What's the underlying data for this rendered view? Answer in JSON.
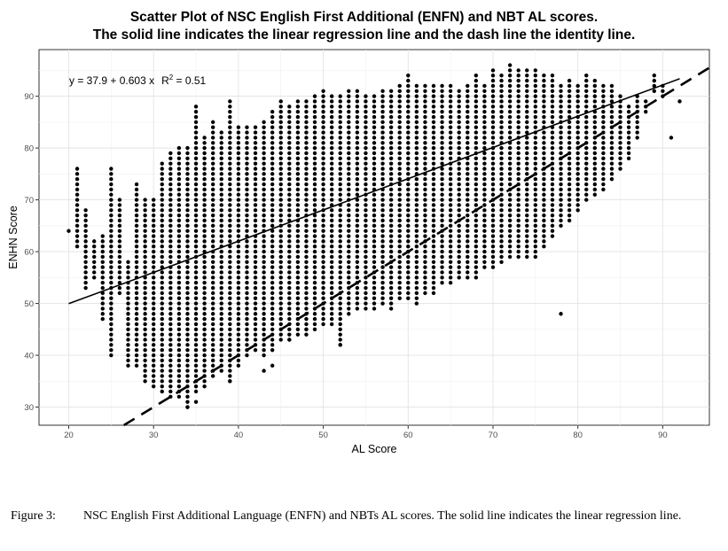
{
  "chart_data": {
    "type": "scatter",
    "title": "Scatter Plot of NSC English First Additional (ENFN) and NBT AL scores.",
    "subtitle": "The solid line indicates the linear regression line and the dash line the identity line.",
    "xlabel": "AL Score",
    "ylabel": "ENHN Score",
    "xlim": [
      16.5,
      95.5
    ],
    "ylim": [
      26.5,
      99
    ],
    "xticks": [
      20,
      30,
      40,
      50,
      60,
      70,
      80,
      90
    ],
    "yticks": [
      30,
      40,
      50,
      60,
      70,
      80,
      90
    ],
    "grid": true,
    "annotation": {
      "prefix": "y = 37.9 + 0.603 x",
      "r2_label": "R",
      "r2_sup": "2",
      "r2_value": " = 0.51"
    },
    "regression": {
      "intercept": 37.9,
      "slope": 0.603,
      "style": "solid"
    },
    "identity": {
      "intercept": 0,
      "slope": 1,
      "style": "dashed"
    },
    "point_grid": {
      "x_step": 1,
      "y_step": 1,
      "x_range": [
        20,
        92
      ]
    },
    "columns": [
      [
        20,
        64,
        64
      ],
      [
        21,
        61,
        76
      ],
      [
        22,
        53,
        68
      ],
      [
        23,
        55,
        62
      ],
      [
        24,
        47,
        63
      ],
      [
        25,
        40,
        76
      ],
      [
        26,
        52,
        70
      ],
      [
        27,
        38,
        58
      ],
      [
        28,
        38,
        73
      ],
      [
        29,
        35,
        70
      ],
      [
        30,
        34,
        70
      ],
      [
        31,
        33,
        77
      ],
      [
        32,
        32,
        79
      ],
      [
        33,
        32,
        80
      ],
      [
        34,
        30,
        80
      ],
      [
        35,
        33,
        88
      ],
      [
        36,
        34,
        82
      ],
      [
        37,
        36,
        85
      ],
      [
        38,
        37,
        83
      ],
      [
        39,
        35,
        89
      ],
      [
        40,
        38,
        84
      ],
      [
        41,
        40,
        84
      ],
      [
        42,
        41,
        84
      ],
      [
        43,
        40,
        85
      ],
      [
        44,
        41,
        87
      ],
      [
        45,
        43,
        89
      ],
      [
        46,
        43,
        88
      ],
      [
        47,
        44,
        89
      ],
      [
        48,
        44,
        89
      ],
      [
        49,
        45,
        90
      ],
      [
        50,
        46,
        91
      ],
      [
        51,
        46,
        90
      ],
      [
        52,
        42,
        90
      ],
      [
        53,
        48,
        91
      ],
      [
        54,
        49,
        91
      ],
      [
        55,
        49,
        90
      ],
      [
        56,
        49,
        90
      ],
      [
        57,
        50,
        91
      ],
      [
        58,
        49,
        91
      ],
      [
        59,
        51,
        92
      ],
      [
        60,
        51,
        94
      ],
      [
        61,
        50,
        92
      ],
      [
        62,
        52,
        92
      ],
      [
        63,
        52,
        92
      ],
      [
        64,
        54,
        92
      ],
      [
        65,
        54,
        92
      ],
      [
        66,
        55,
        91
      ],
      [
        67,
        55,
        92
      ],
      [
        68,
        55,
        94
      ],
      [
        69,
        57,
        92
      ],
      [
        70,
        57,
        95
      ],
      [
        71,
        58,
        94
      ],
      [
        72,
        59,
        96
      ],
      [
        73,
        59,
        95
      ],
      [
        74,
        59,
        95
      ],
      [
        75,
        59,
        95
      ],
      [
        76,
        61,
        94
      ],
      [
        77,
        63,
        94
      ],
      [
        78,
        65,
        92
      ],
      [
        79,
        66,
        93
      ],
      [
        80,
        68,
        92
      ],
      [
        81,
        70,
        94
      ],
      [
        82,
        71,
        93
      ],
      [
        83,
        72,
        92
      ],
      [
        84,
        74,
        92
      ],
      [
        85,
        76,
        90
      ],
      [
        86,
        78,
        88
      ],
      [
        87,
        82,
        90
      ],
      [
        88,
        87,
        89
      ],
      [
        89,
        91,
        94
      ],
      [
        90,
        90,
        92
      ],
      [
        91,
        82,
        82
      ],
      [
        92,
        89,
        89
      ]
    ],
    "outliers": [
      [
        78,
        48
      ],
      [
        44,
        38
      ],
      [
        43,
        37
      ],
      [
        52,
        42
      ],
      [
        35,
        31
      ],
      [
        34,
        30
      ],
      [
        39,
        35
      ],
      [
        46,
        43
      ],
      [
        48,
        45
      ]
    ]
  }
}
